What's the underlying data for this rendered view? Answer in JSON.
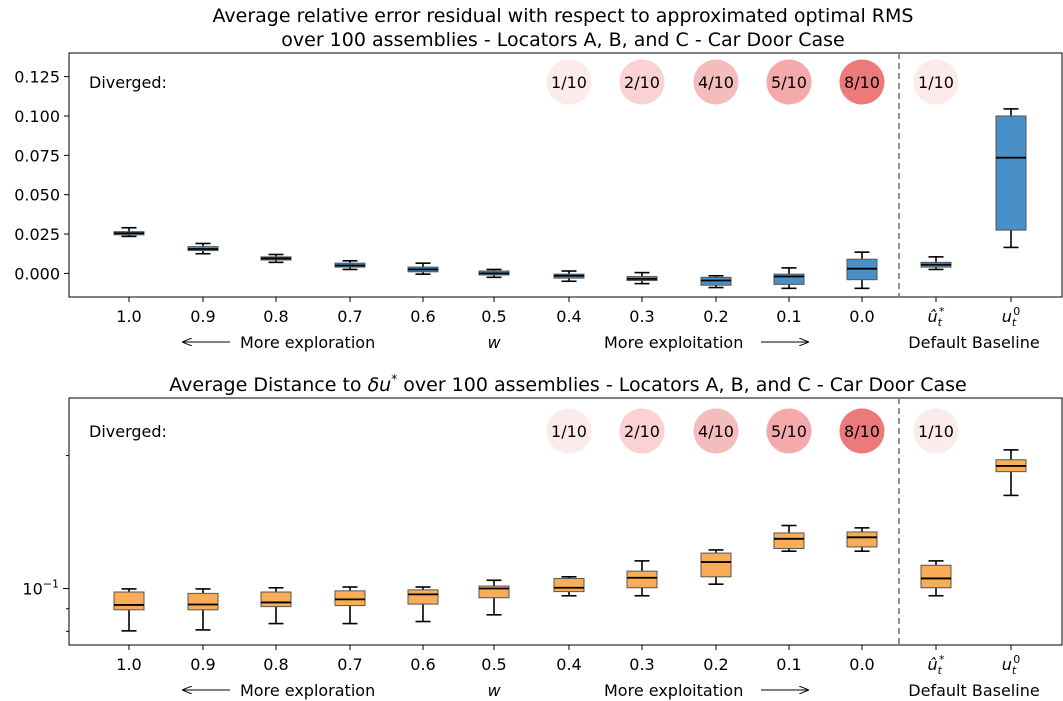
{
  "chart_data": [
    {
      "type": "box",
      "title_line1": "Average relative error residual with respect to approximated optimal RMS",
      "title_line2": "over 100 assemblies - Locators A, B, and C - Car Door Case",
      "ylim": [
        -0.015,
        0.14
      ],
      "yticks": [
        "0.125",
        "0.100",
        "0.075",
        "0.050",
        "0.025",
        "0.000"
      ],
      "ytick_values": [
        0.125,
        0.1,
        0.075,
        0.05,
        0.025,
        0.0
      ],
      "categories": [
        "1.0",
        "0.9",
        "0.8",
        "0.7",
        "0.6",
        "0.5",
        "0.4",
        "0.3",
        "0.2",
        "0.1",
        "0.0",
        "ût*",
        "ut0"
      ],
      "box_color": "#4a90c8",
      "boxes": [
        {
          "whislo": 0.0235,
          "q1": 0.0245,
          "med": 0.0255,
          "q3": 0.0265,
          "whishi": 0.029
        },
        {
          "whislo": 0.0125,
          "q1": 0.0145,
          "med": 0.0155,
          "q3": 0.017,
          "whishi": 0.019
        },
        {
          "whislo": 0.007,
          "q1": 0.0085,
          "med": 0.0095,
          "q3": 0.0105,
          "whishi": 0.012
        },
        {
          "whislo": 0.0025,
          "q1": 0.004,
          "med": 0.005,
          "q3": 0.0065,
          "whishi": 0.008
        },
        {
          "whislo": -0.0005,
          "q1": 0.001,
          "med": 0.0025,
          "q3": 0.004,
          "whishi": 0.0065
        },
        {
          "whislo": -0.0025,
          "q1": -0.001,
          "med": 0.0,
          "q3": 0.0015,
          "whishi": 0.0025
        },
        {
          "whislo": -0.005,
          "q1": -0.003,
          "med": -0.0015,
          "q3": -0.0005,
          "whishi": 0.0015
        },
        {
          "whislo": -0.0065,
          "q1": -0.0045,
          "med": -0.0035,
          "q3": -0.002,
          "whishi": 0.0005
        },
        {
          "whislo": -0.009,
          "q1": -0.0075,
          "med": -0.0045,
          "q3": -0.0025,
          "whishi": -0.0015
        },
        {
          "whislo": -0.0095,
          "q1": -0.007,
          "med": -0.002,
          "q3": -0.0005,
          "whishi": 0.0035
        },
        {
          "whislo": -0.0095,
          "q1": -0.004,
          "med": 0.003,
          "q3": 0.009,
          "whishi": 0.0135
        },
        {
          "whislo": 0.0025,
          "q1": 0.004,
          "med": 0.0055,
          "q3": 0.007,
          "whishi": 0.0105
        },
        {
          "whislo": 0.0165,
          "q1": 0.0275,
          "med": 0.0735,
          "q3": 0.1,
          "whishi": 0.1045
        }
      ],
      "diverged_label": "Diverged:",
      "diverged": [
        {
          "category": "0.4",
          "label": "1/10",
          "color": "#fdeaea"
        },
        {
          "category": "0.3",
          "label": "2/10",
          "color": "#fad2d2"
        },
        {
          "category": "0.2",
          "label": "4/10",
          "color": "#f5bcbc"
        },
        {
          "category": "0.1",
          "label": "5/10",
          "color": "#f4aaaa"
        },
        {
          "category": "0.0",
          "label": "8/10",
          "color": "#ec7a7a"
        },
        {
          "category": "ût*",
          "label": "1/10",
          "color": "#fdeaea"
        }
      ],
      "xlabels": {
        "more_exploration": "More exploration",
        "w": "w",
        "more_exploitation": "More exploitation",
        "default_baseline": "Default Baseline"
      }
    },
    {
      "type": "box",
      "title_prefix": "Average Distance to ",
      "title_symbol": "δu",
      "title_sup": "*",
      "title_suffix": " over 100 assemblies - Locators A, B, and C - Car Door Case",
      "yscale": "log",
      "ylim": [
        0.0745,
        0.27
      ],
      "ytick_label": "10",
      "ytick_exp": "−1",
      "ytick_value": 0.1,
      "categories": [
        "1.0",
        "0.9",
        "0.8",
        "0.7",
        "0.6",
        "0.5",
        "0.4",
        "0.3",
        "0.2",
        "0.1",
        "0.0",
        "ût*",
        "ut0"
      ],
      "box_color": "#f9ad56",
      "boxes": [
        {
          "whislo": 0.0802,
          "q1": 0.0895,
          "med": 0.0918,
          "q3": 0.0982,
          "whishi": 0.0998
        },
        {
          "whislo": 0.0806,
          "q1": 0.0895,
          "med": 0.092,
          "q3": 0.0975,
          "whishi": 0.0998
        },
        {
          "whislo": 0.0833,
          "q1": 0.091,
          "med": 0.093,
          "q3": 0.0982,
          "whishi": 0.1004
        },
        {
          "whislo": 0.0833,
          "q1": 0.0915,
          "med": 0.0945,
          "q3": 0.0988,
          "whishi": 0.1008
        },
        {
          "whislo": 0.0842,
          "q1": 0.0922,
          "med": 0.097,
          "q3": 0.0993,
          "whishi": 0.1008
        },
        {
          "whislo": 0.0872,
          "q1": 0.0953,
          "med": 0.1,
          "q3": 0.1013,
          "whishi": 0.1044
        },
        {
          "whislo": 0.0963,
          "q1": 0.0984,
          "med": 0.1004,
          "q3": 0.1054,
          "whishi": 0.1063
        },
        {
          "whislo": 0.0963,
          "q1": 0.1004,
          "med": 0.1058,
          "q3": 0.1095,
          "whishi": 0.1155
        },
        {
          "whislo": 0.1023,
          "q1": 0.1063,
          "med": 0.1148,
          "q3": 0.1203,
          "whishi": 0.1223
        },
        {
          "whislo": 0.1215,
          "q1": 0.1232,
          "med": 0.1296,
          "q3": 0.1336,
          "whishi": 0.1389
        },
        {
          "whislo": 0.1215,
          "q1": 0.1242,
          "med": 0.1306,
          "q3": 0.1343,
          "whishi": 0.1372
        },
        {
          "whislo": 0.0963,
          "q1": 0.1004,
          "med": 0.1054,
          "q3": 0.1129,
          "whishi": 0.1155
        },
        {
          "whislo": 0.1625,
          "q1": 0.1839,
          "med": 0.1895,
          "q3": 0.1957,
          "whishi": 0.206
        }
      ],
      "diverged_label": "Diverged:",
      "diverged": [
        {
          "category": "0.4",
          "label": "1/10",
          "color": "#fdeaea"
        },
        {
          "category": "0.3",
          "label": "2/10",
          "color": "#fad2d2"
        },
        {
          "category": "0.2",
          "label": "4/10",
          "color": "#f5bcbc"
        },
        {
          "category": "0.1",
          "label": "5/10",
          "color": "#f4aaaa"
        },
        {
          "category": "0.0",
          "label": "8/10",
          "color": "#ec7a7a"
        },
        {
          "category": "ût*",
          "label": "1/10",
          "color": "#fdeaea"
        }
      ],
      "xlabels": {
        "more_exploration": "More exploration",
        "w": "w",
        "more_exploitation": "More exploitation",
        "default_baseline": "Default Baseline"
      }
    }
  ]
}
